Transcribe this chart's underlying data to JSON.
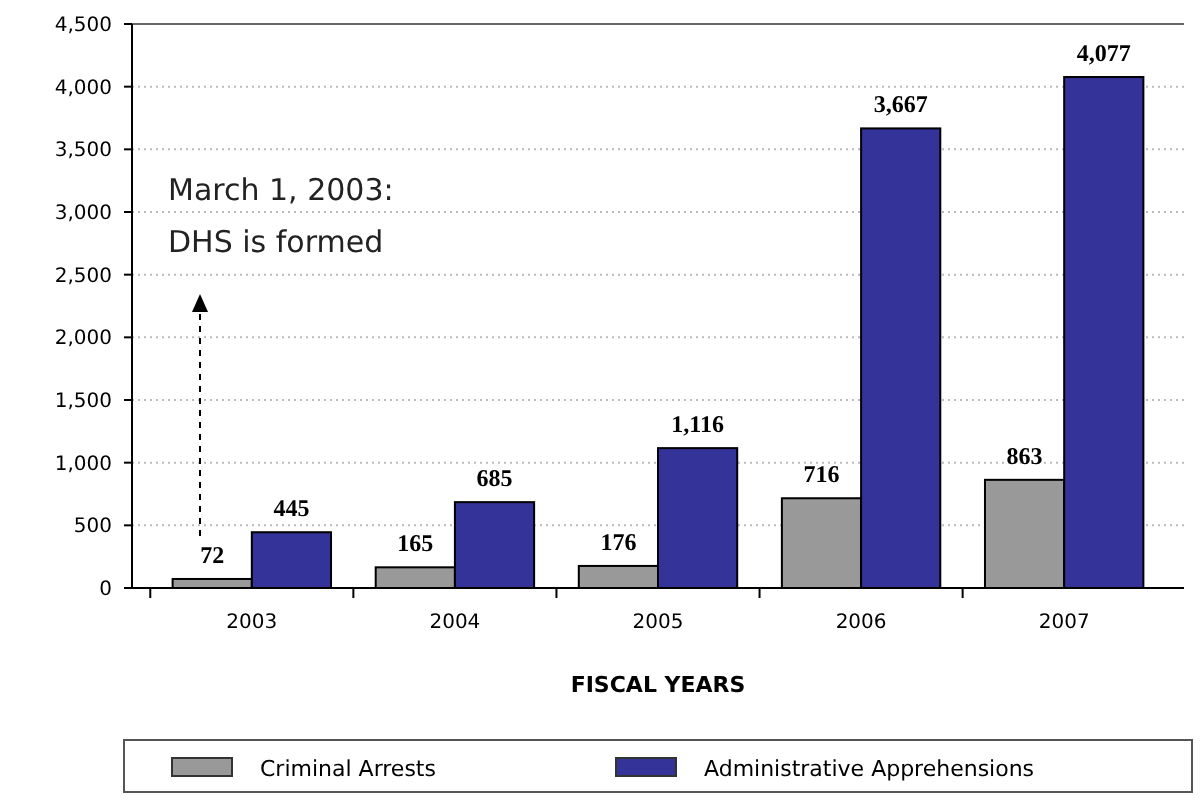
{
  "chart_data": {
    "type": "bar",
    "xlabel": "FISCAL YEARS",
    "categories": [
      "2003",
      "2004",
      "2005",
      "2006",
      "2007"
    ],
    "series": [
      {
        "name": "Criminal Arrests",
        "color": "#999999",
        "values": [
          72,
          165,
          176,
          716,
          863
        ],
        "value_labels": [
          "72",
          "165",
          "176",
          "716",
          "863"
        ]
      },
      {
        "name": "Administrative Apprehensions",
        "color": "#333399",
        "values": [
          445,
          685,
          1116,
          3667,
          4077
        ],
        "value_labels": [
          "445",
          "685",
          "1,116",
          "3,667",
          "4,077"
        ]
      }
    ],
    "ylim": [
      0,
      4500
    ],
    "yticks": [
      {
        "value": 0,
        "label": "0"
      },
      {
        "value": 500,
        "label": "500"
      },
      {
        "value": 1000,
        "label": "1,000"
      },
      {
        "value": 1500,
        "label": "1,500"
      },
      {
        "value": 2000,
        "label": "2,000"
      },
      {
        "value": 2500,
        "label": "2,500"
      },
      {
        "value": 3000,
        "label": "3,000"
      },
      {
        "value": 3500,
        "label": "3,500"
      },
      {
        "value": 4000,
        "label": "4,000"
      },
      {
        "value": 4500,
        "label": "4,500"
      }
    ],
    "grid": "y",
    "legend": "bottom",
    "annotations": [
      "March 1, 2003:\nDHS is formed"
    ]
  }
}
